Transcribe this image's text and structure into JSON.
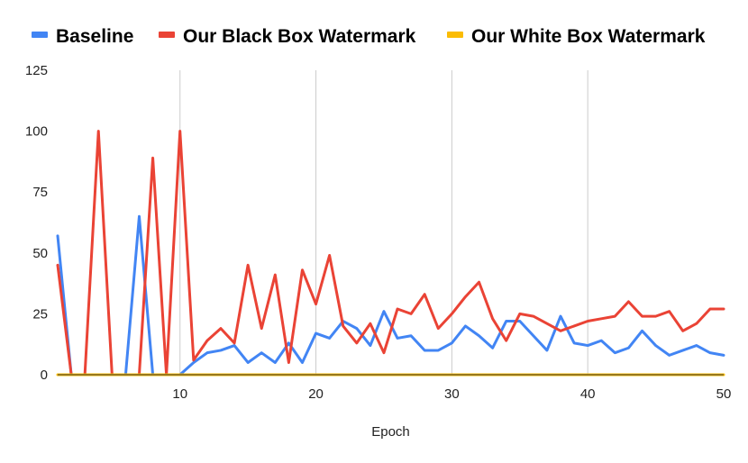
{
  "chart_data": {
    "type": "line",
    "title": "",
    "xlabel": "Epoch",
    "ylabel": "",
    "xlim": [
      1,
      50
    ],
    "ylim": [
      0,
      125
    ],
    "x_ticks": [
      10,
      20,
      30,
      40,
      50
    ],
    "y_ticks": [
      0,
      25,
      50,
      75,
      100,
      125
    ],
    "grid": "vertical",
    "legend_position": "top",
    "x": [
      1,
      2,
      3,
      4,
      5,
      6,
      7,
      8,
      9,
      10,
      11,
      12,
      13,
      14,
      15,
      16,
      17,
      18,
      19,
      20,
      21,
      22,
      23,
      24,
      25,
      26,
      27,
      28,
      29,
      30,
      31,
      32,
      33,
      34,
      35,
      36,
      37,
      38,
      39,
      40,
      41,
      42,
      43,
      44,
      45,
      46,
      47,
      48,
      49,
      50
    ],
    "series": [
      {
        "name": "Baseline",
        "color": "#4285f4",
        "values": [
          57,
          0,
          0,
          0,
          0,
          0,
          65,
          0,
          0,
          0,
          5,
          9,
          10,
          12,
          5,
          9,
          5,
          13,
          5,
          17,
          15,
          22,
          19,
          12,
          26,
          15,
          16,
          10,
          10,
          13,
          20,
          16,
          11,
          22,
          22,
          16,
          10,
          24,
          13,
          12,
          14,
          9,
          11,
          18,
          12,
          8,
          10,
          12,
          9,
          8
        ]
      },
      {
        "name": "Our Black Box Watermark",
        "color": "#ea4335",
        "values": [
          45,
          0,
          0,
          100,
          0,
          0,
          0,
          89,
          0,
          100,
          6,
          14,
          19,
          13,
          45,
          19,
          41,
          5,
          43,
          29,
          49,
          20,
          13,
          21,
          9,
          27,
          25,
          33,
          19,
          25,
          32,
          38,
          23,
          14,
          25,
          24,
          21,
          18,
          20,
          22,
          23,
          24,
          30,
          24,
          24,
          26,
          18,
          21,
          27,
          27
        ]
      },
      {
        "name": "Our White Box Watermark",
        "color": "#fbbc04",
        "values": [
          0,
          0,
          0,
          0,
          0,
          0,
          0,
          0,
          0,
          0,
          0,
          0,
          0,
          0,
          0,
          0,
          0,
          0,
          0,
          0,
          0,
          0,
          0,
          0,
          0,
          0,
          0,
          0,
          0,
          0,
          0,
          0,
          0,
          0,
          0,
          0,
          0,
          0,
          0,
          0,
          0,
          0,
          0,
          0,
          0,
          0,
          0,
          0,
          0,
          0
        ]
      }
    ]
  }
}
